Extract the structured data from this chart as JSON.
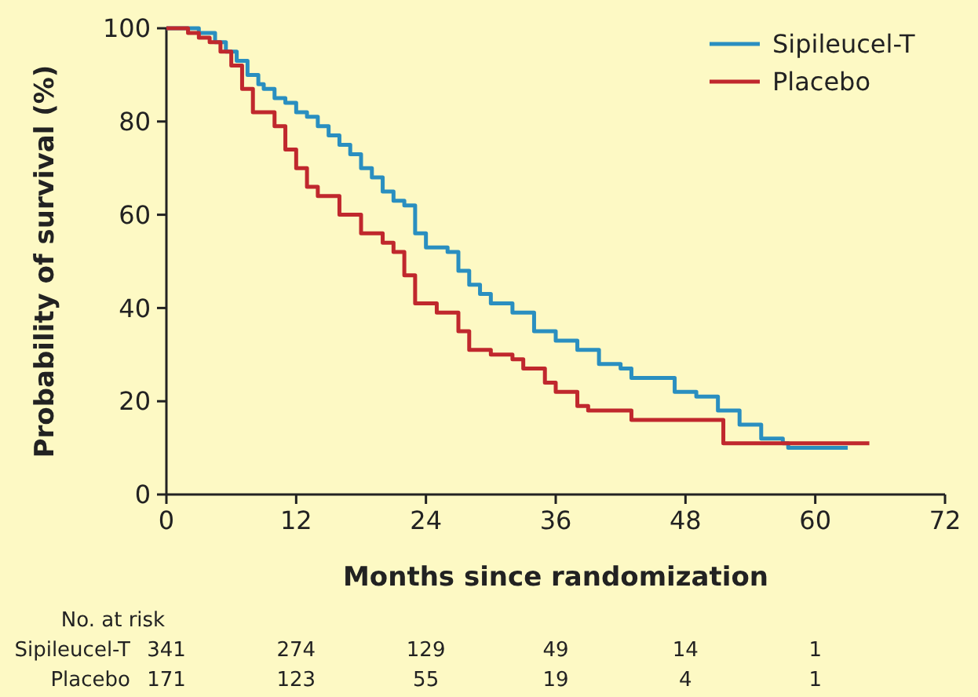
{
  "chart_data": {
    "type": "step",
    "xlabel": "Months since randomization",
    "ylabel": "Probability of survival (%)",
    "xlim": [
      0,
      72
    ],
    "xticks": [
      0,
      12,
      24,
      36,
      48,
      60,
      72
    ],
    "ylim": [
      0,
      100
    ],
    "yticks": [
      0,
      20,
      40,
      60,
      80,
      100
    ],
    "legend": "top right",
    "grid": false,
    "series": [
      {
        "name": "Sipileucel-T",
        "color": "#2a8fc0",
        "x": [
          0,
          3,
          4.5,
          5.5,
          6.5,
          7.5,
          8.5,
          9,
          10,
          11,
          12,
          13,
          14,
          15,
          16,
          17,
          18,
          19,
          20,
          21,
          22,
          23,
          24,
          26,
          27,
          28,
          29,
          30,
          32,
          34,
          36,
          38,
          40,
          42,
          43,
          46,
          47,
          49,
          51,
          53,
          55,
          57,
          57.5,
          63
        ],
        "values": [
          100,
          99,
          97,
          95,
          93,
          90,
          88,
          87,
          85,
          84,
          82,
          81,
          79,
          77,
          75,
          73,
          70,
          68,
          65,
          63,
          62,
          56,
          53,
          52,
          48,
          45,
          43,
          41,
          39,
          35,
          33,
          31,
          28,
          27,
          25,
          25,
          22,
          21,
          18,
          15,
          12,
          11,
          10,
          10
        ]
      },
      {
        "name": "Placebo",
        "color": "#c0282d",
        "x": [
          0,
          2,
          3,
          4,
          5,
          6,
          7,
          8,
          10,
          11,
          12,
          13,
          14,
          16,
          18,
          20,
          21,
          22,
          23,
          25,
          27,
          28,
          30,
          32,
          33,
          35,
          36,
          38,
          39,
          43,
          51,
          51.5,
          65
        ],
        "values": [
          100,
          99,
          98,
          97,
          95,
          92,
          87,
          82,
          79,
          74,
          70,
          66,
          64,
          60,
          56,
          54,
          52,
          47,
          41,
          39,
          35,
          31,
          30,
          29,
          27,
          24,
          22,
          19,
          18,
          16,
          16,
          11,
          11
        ]
      }
    ],
    "annotations": [
      "No. at risk",
      "Sipileucel-T",
      "341",
      "274",
      "129",
      "49",
      "14",
      "1",
      "Placebo",
      "171",
      "123",
      "55",
      "19",
      "4",
      "1"
    ]
  }
}
